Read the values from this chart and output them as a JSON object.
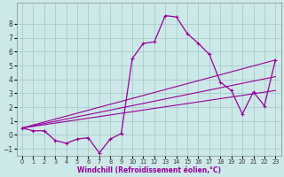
{
  "xlabel": "Windchill (Refroidissement éolien,°C)",
  "bg_color": "#cce8e8",
  "line_color": "#990099",
  "grid_color": "#aacccc",
  "x_data": [
    0,
    1,
    2,
    3,
    4,
    5,
    6,
    7,
    8,
    9,
    10,
    11,
    12,
    13,
    14,
    15,
    16,
    17,
    18,
    19,
    20,
    21,
    22,
    23
  ],
  "y_main": [
    0.5,
    0.3,
    0.3,
    -0.4,
    -0.6,
    -0.3,
    -0.2,
    -1.3,
    -0.3,
    0.1,
    5.5,
    6.6,
    6.7,
    8.6,
    8.5,
    7.3,
    6.6,
    5.8,
    3.8,
    3.2,
    1.5,
    3.1,
    2.1,
    5.4
  ],
  "line1_start": 0.5,
  "line1_end": 5.4,
  "line2_start": 0.5,
  "line2_end": 4.2,
  "line3_start": 0.5,
  "line3_end": 3.2,
  "ylim": [
    -1.5,
    9.5
  ],
  "xlim": [
    -0.5,
    23.5
  ],
  "yticks": [
    -1,
    0,
    1,
    2,
    3,
    4,
    5,
    6,
    7,
    8
  ],
  "xticks": [
    0,
    1,
    2,
    3,
    4,
    5,
    6,
    7,
    8,
    9,
    10,
    11,
    12,
    13,
    14,
    15,
    16,
    17,
    18,
    19,
    20,
    21,
    22,
    23
  ]
}
